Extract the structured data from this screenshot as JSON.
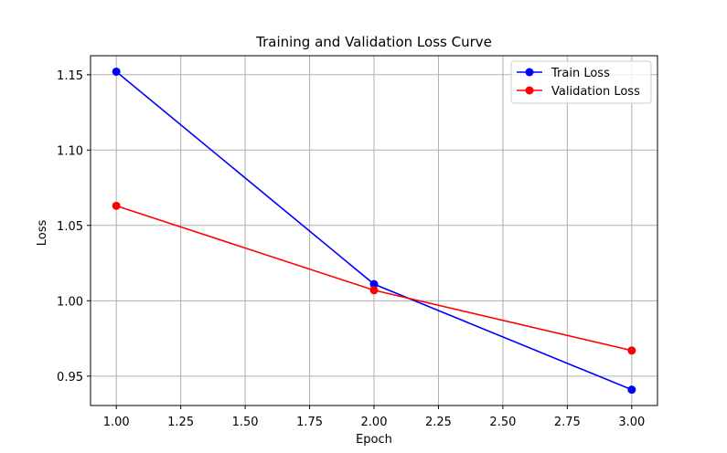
{
  "chart_data": {
    "type": "line",
    "title": "Training and Validation Loss Curve",
    "xlabel": "Epoch",
    "ylabel": "Loss",
    "x": [
      1.0,
      2.0,
      3.0
    ],
    "xlim": [
      0.9,
      3.1
    ],
    "ylim": [
      0.9305,
      1.1626
    ],
    "xticks": [
      1.0,
      1.25,
      1.5,
      1.75,
      2.0,
      2.25,
      2.5,
      2.75,
      3.0
    ],
    "xtick_labels": [
      "1.00",
      "1.25",
      "1.50",
      "1.75",
      "2.00",
      "2.25",
      "2.50",
      "2.75",
      "3.00"
    ],
    "yticks": [
      0.95,
      1.0,
      1.05,
      1.1,
      1.15
    ],
    "ytick_labels": [
      "0.95",
      "1.00",
      "1.05",
      "1.10",
      "1.15"
    ],
    "grid": true,
    "legend_position": "top-right",
    "series": [
      {
        "name": "Train Loss",
        "color": "#0000ff",
        "marker": "circle",
        "values": [
          1.152,
          1.011,
          0.941
        ]
      },
      {
        "name": "Validation Loss",
        "color": "#ff0000",
        "marker": "circle",
        "values": [
          1.063,
          1.007,
          0.967
        ]
      }
    ]
  }
}
